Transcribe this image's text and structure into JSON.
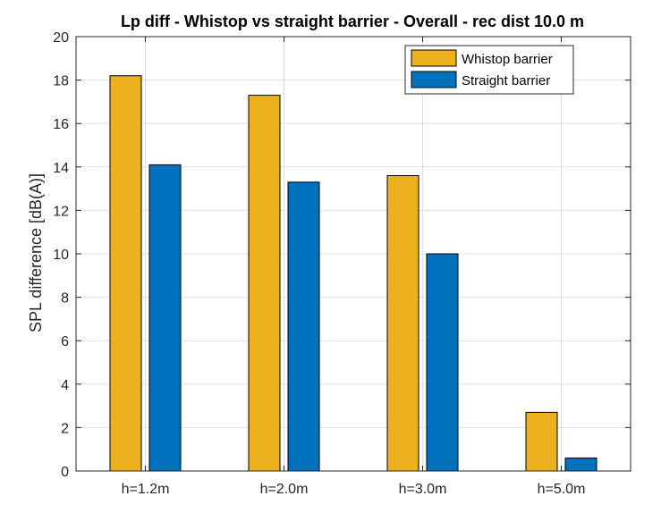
{
  "chart_data": {
    "type": "bar",
    "title": "Lp diff - Whistop vs straight barrier - Overall - rec dist 10.0 m",
    "xlabel": "",
    "ylabel": "SPL difference [dB(A)]",
    "categories": [
      "h=1.2m",
      "h=2.0m",
      "h=3.0m",
      "h=5.0m"
    ],
    "series": [
      {
        "name": "Whistop barrier",
        "color": "#EDB120",
        "values": [
          18.2,
          17.3,
          13.6,
          2.7
        ]
      },
      {
        "name": "Straight barrier",
        "color": "#0072BD",
        "values": [
          14.1,
          13.3,
          10.0,
          0.6
        ]
      }
    ],
    "ylim": [
      0,
      20
    ],
    "yticks": [
      0,
      2,
      4,
      6,
      8,
      10,
      12,
      14,
      16,
      18,
      20
    ],
    "grid": true,
    "legend_position": "top-right"
  }
}
